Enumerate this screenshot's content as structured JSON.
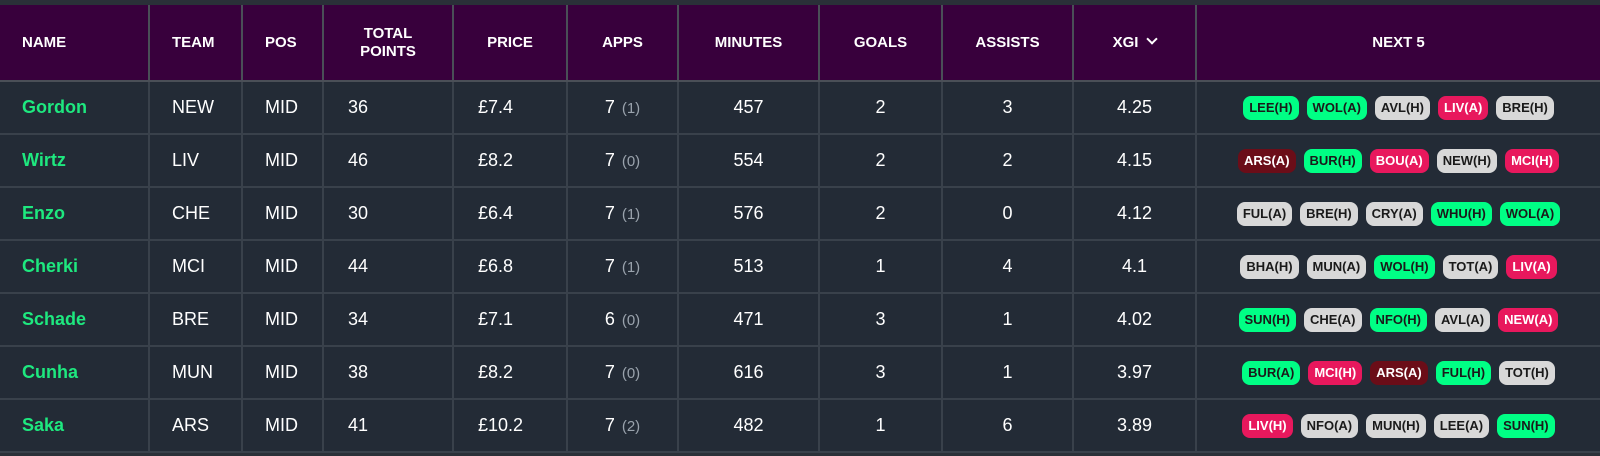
{
  "headers": {
    "name": "NAME",
    "team": "TEAM",
    "pos": "POS",
    "total_points_line1": "TOTAL",
    "total_points_line2": "POINTS",
    "price": "PRICE",
    "apps": "APPS",
    "minutes": "MINUTES",
    "goals": "GOALS",
    "assists": "ASSISTS",
    "xgi": "XGI",
    "next5": "NEXT 5"
  },
  "difficulty_colors": {
    "green": "#00ff85",
    "grey": "#d8d8d8",
    "pink": "#e8185d",
    "maroon": "#6b0d18"
  },
  "rows": [
    {
      "name": "Gordon",
      "team": "NEW",
      "pos": "MID",
      "points": "36",
      "price": "£7.4",
      "apps": "7",
      "apps_sub": "(1)",
      "minutes": "457",
      "goals": "2",
      "assists": "3",
      "xgi": "4.25",
      "fixtures": [
        {
          "label": "LEE(H)",
          "level": "green"
        },
        {
          "label": "WOL(A)",
          "level": "green"
        },
        {
          "label": "AVL(H)",
          "level": "grey"
        },
        {
          "label": "LIV(A)",
          "level": "pink"
        },
        {
          "label": "BRE(H)",
          "level": "grey"
        }
      ]
    },
    {
      "name": "Wirtz",
      "team": "LIV",
      "pos": "MID",
      "points": "46",
      "price": "£8.2",
      "apps": "7",
      "apps_sub": "(0)",
      "minutes": "554",
      "goals": "2",
      "assists": "2",
      "xgi": "4.15",
      "fixtures": [
        {
          "label": "ARS(A)",
          "level": "maroon"
        },
        {
          "label": "BUR(H)",
          "level": "green"
        },
        {
          "label": "BOU(A)",
          "level": "pink"
        },
        {
          "label": "NEW(H)",
          "level": "grey"
        },
        {
          "label": "MCI(H)",
          "level": "pink"
        }
      ]
    },
    {
      "name": "Enzo",
      "team": "CHE",
      "pos": "MID",
      "points": "30",
      "price": "£6.4",
      "apps": "7",
      "apps_sub": "(1)",
      "minutes": "576",
      "goals": "2",
      "assists": "0",
      "xgi": "4.12",
      "fixtures": [
        {
          "label": "FUL(A)",
          "level": "grey"
        },
        {
          "label": "BRE(H)",
          "level": "grey"
        },
        {
          "label": "CRY(A)",
          "level": "grey"
        },
        {
          "label": "WHU(H)",
          "level": "green"
        },
        {
          "label": "WOL(A)",
          "level": "green"
        }
      ]
    },
    {
      "name": "Cherki",
      "team": "MCI",
      "pos": "MID",
      "points": "44",
      "price": "£6.8",
      "apps": "7",
      "apps_sub": "(1)",
      "minutes": "513",
      "goals": "1",
      "assists": "4",
      "xgi": "4.1",
      "fixtures": [
        {
          "label": "BHA(H)",
          "level": "grey"
        },
        {
          "label": "MUN(A)",
          "level": "grey"
        },
        {
          "label": "WOL(H)",
          "level": "green"
        },
        {
          "label": "TOT(A)",
          "level": "grey"
        },
        {
          "label": "LIV(A)",
          "level": "pink"
        }
      ]
    },
    {
      "name": "Schade",
      "team": "BRE",
      "pos": "MID",
      "points": "34",
      "price": "£7.1",
      "apps": "6",
      "apps_sub": "(0)",
      "minutes": "471",
      "goals": "3",
      "assists": "1",
      "xgi": "4.02",
      "fixtures": [
        {
          "label": "SUN(H)",
          "level": "green"
        },
        {
          "label": "CHE(A)",
          "level": "grey"
        },
        {
          "label": "NFO(H)",
          "level": "green"
        },
        {
          "label": "AVL(A)",
          "level": "grey"
        },
        {
          "label": "NEW(A)",
          "level": "pink"
        }
      ]
    },
    {
      "name": "Cunha",
      "team": "MUN",
      "pos": "MID",
      "points": "38",
      "price": "£8.2",
      "apps": "7",
      "apps_sub": "(0)",
      "minutes": "616",
      "goals": "3",
      "assists": "1",
      "xgi": "3.97",
      "fixtures": [
        {
          "label": "BUR(A)",
          "level": "green"
        },
        {
          "label": "MCI(H)",
          "level": "pink"
        },
        {
          "label": "ARS(A)",
          "level": "maroon"
        },
        {
          "label": "FUL(H)",
          "level": "green"
        },
        {
          "label": "TOT(H)",
          "level": "grey"
        }
      ]
    },
    {
      "name": "Saka",
      "team": "ARS",
      "pos": "MID",
      "points": "41",
      "price": "£10.2",
      "apps": "7",
      "apps_sub": "(2)",
      "minutes": "482",
      "goals": "1",
      "assists": "6",
      "xgi": "3.89",
      "fixtures": [
        {
          "label": "LIV(H)",
          "level": "pink"
        },
        {
          "label": "NFO(A)",
          "level": "grey"
        },
        {
          "label": "MUN(H)",
          "level": "grey"
        },
        {
          "label": "LEE(A)",
          "level": "grey"
        },
        {
          "label": "SUN(H)",
          "level": "green"
        }
      ]
    }
  ]
}
